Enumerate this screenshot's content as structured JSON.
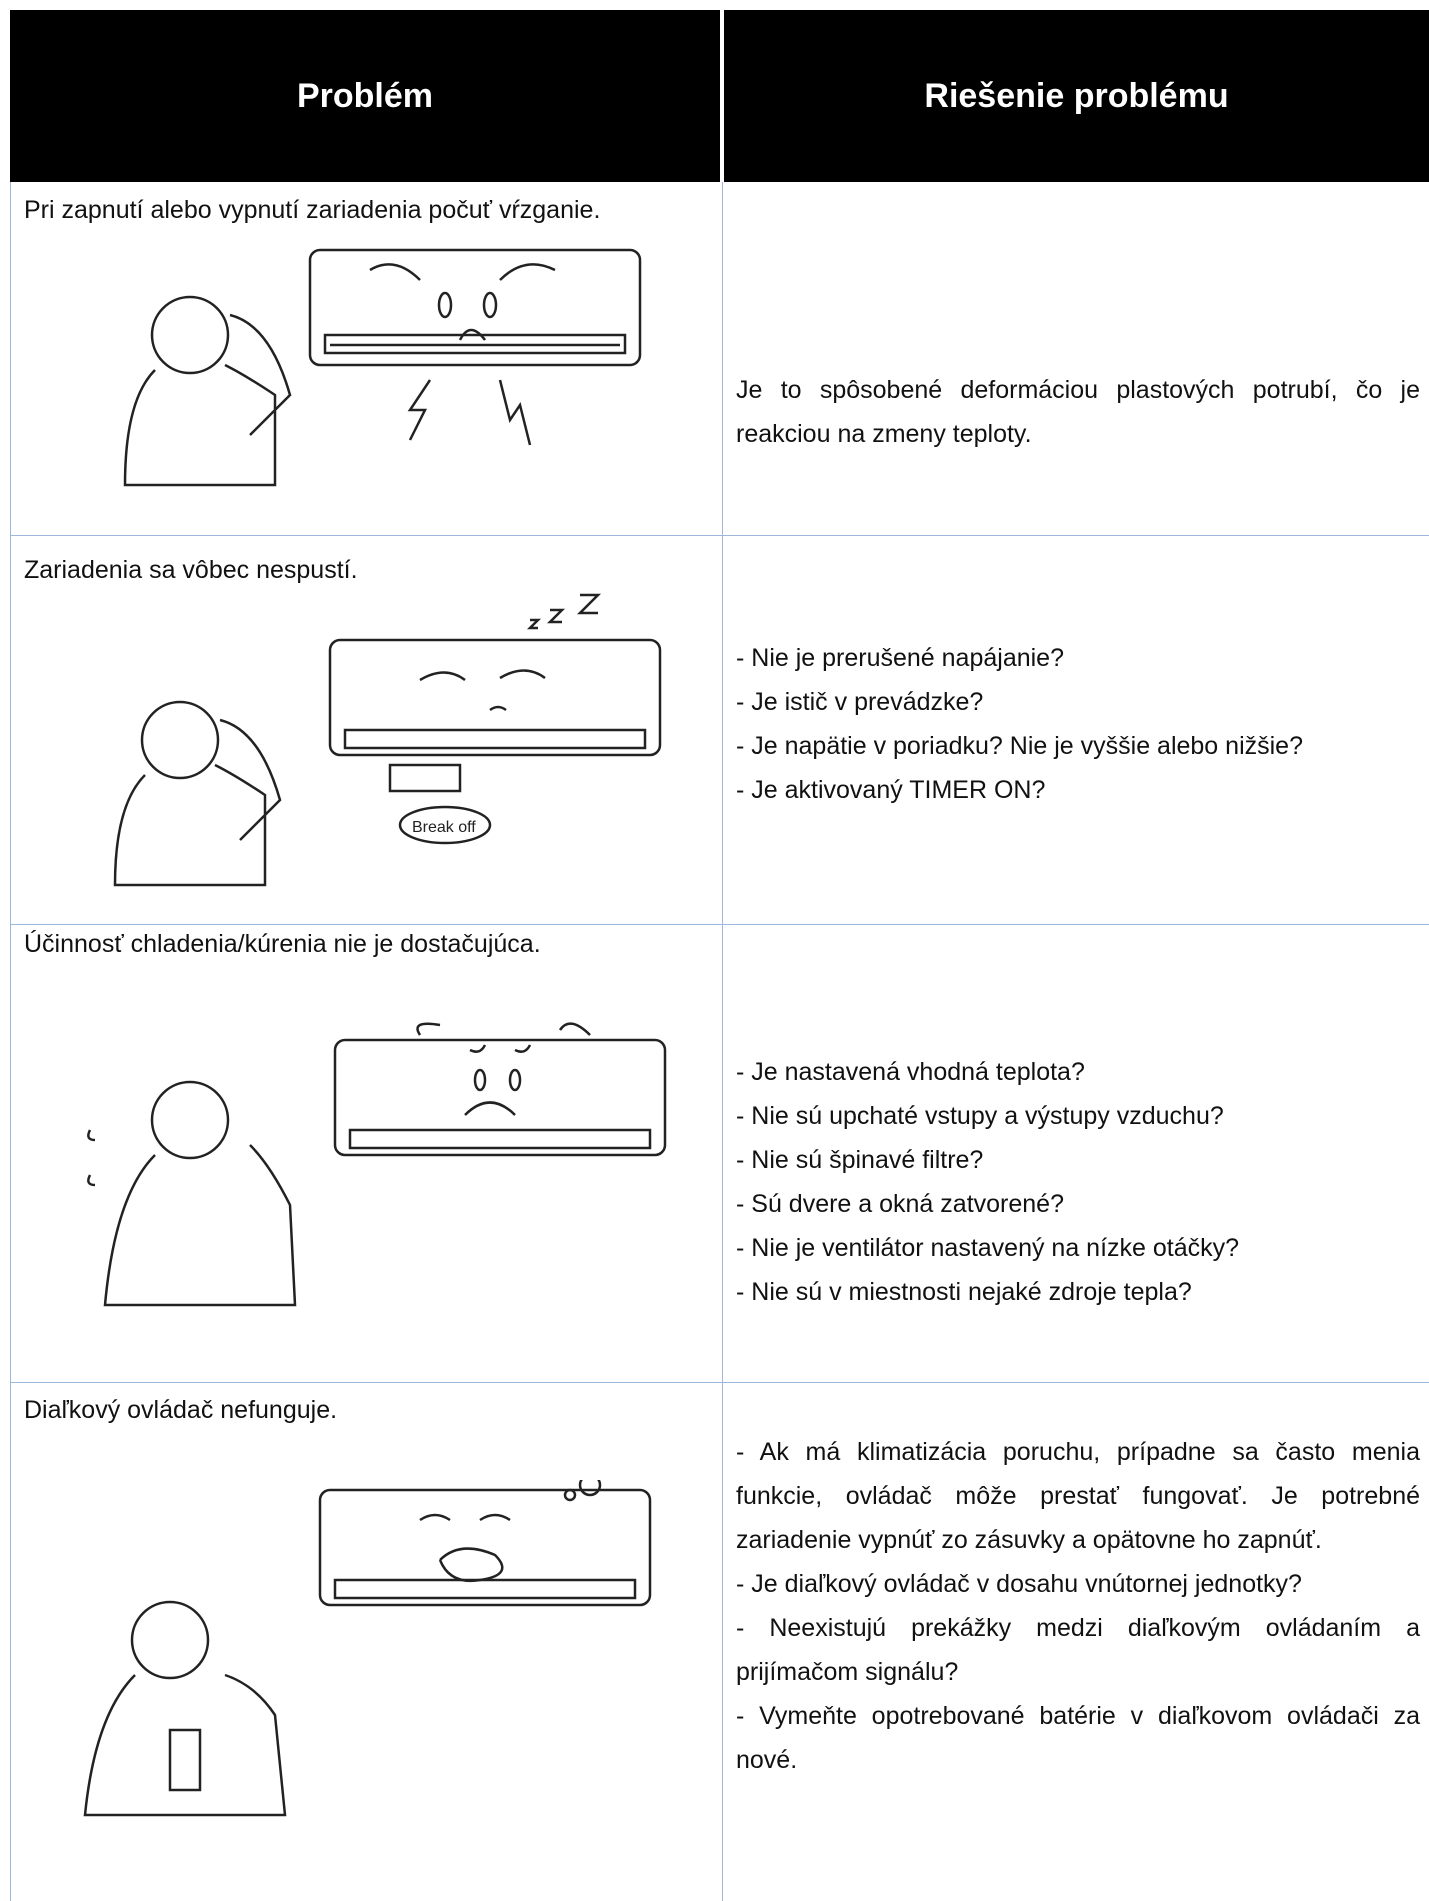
{
  "header": {
    "columns": [
      "Problém",
      "Riešenie problému"
    ]
  },
  "table": {
    "rows": [
      {
        "problem": "Pri zapnutí alebo vypnutí zariadenia počuť vŕzganie.",
        "solution": [
          "Je to spôsobené deformáciou plastových potrubí, čo je reakciou na zmeny teploty."
        ]
      },
      {
        "problem": "Zariadenia sa vôbec nespustí.",
        "illustration_label": "Break off",
        "solution": [
          "- Nie je prerušené napájanie?",
          "- Je istič v prevádzke?",
          "- Je napätie v poriadku? Nie je vyššie alebo nižšie?",
          "- Je aktivovaný TIMER ON?"
        ]
      },
      {
        "problem": "Účinnosť chladenia/kúrenia nie je dostačujúca.",
        "solution": [
          "- Je nastavená vhodná teplota?",
          "- Nie sú upchaté vstupy a výstupy vzduchu?",
          "- Nie sú špinavé filtre?",
          "- Sú dvere a okná zatvorené?",
          "- Nie je ventilátor nastavený na nízke otáčky?",
          "- Nie sú v miestnosti nejaké zdroje tepla?"
        ]
      },
      {
        "problem": "Diaľkový ovládač nefunguje.",
        "solution": [
          "- Ak má klimatizácia poruchu, prípadne sa často menia funkcie, ovládač môže prestať fungovať. Je potrebné zariadenie vypnúť zo zásuvky a opätovne ho zapnúť.",
          "- Je diaľkový ovládač v dosahu vnútornej jednotky?",
          "- Neexistujú prekážky medzi diaľkovým ovládaním a prijímačom signálu?",
          "- Vymeňte opotrebované batérie v diaľkovom ovládači za nové."
        ]
      }
    ]
  }
}
